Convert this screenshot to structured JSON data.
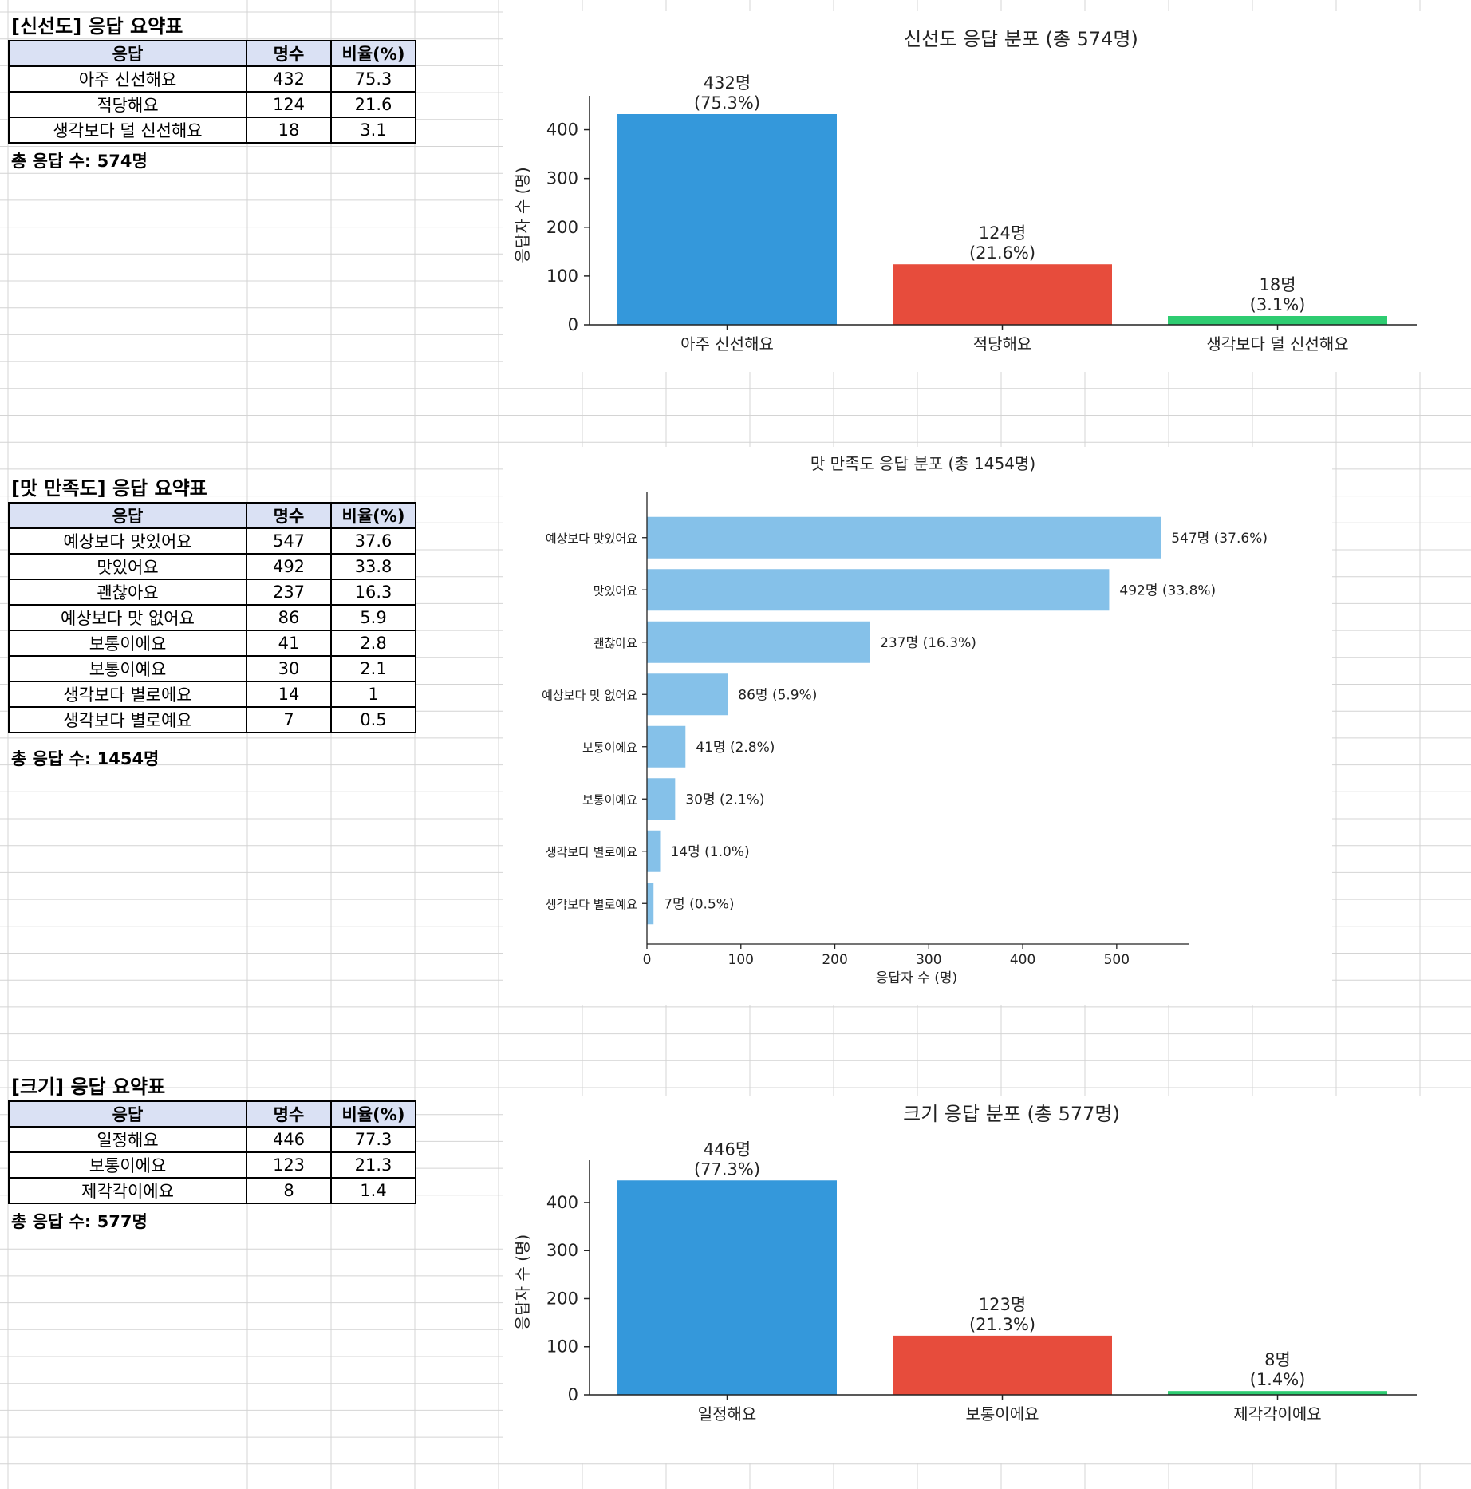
{
  "colors": {
    "header_fill": "#dae1f4",
    "bar_primary": "#3498db",
    "bar_secondary": "#e74c3c",
    "bar_tertiary": "#2ecc71",
    "bar_horizontal": "#85c1e9",
    "gridline": "#d4d4d4"
  },
  "tables": [
    {
      "title": "[신선도] 응답 요약표",
      "headers": [
        "응답",
        "명수",
        "비율(%)"
      ],
      "rows": [
        [
          "아주 신선해요",
          "432",
          "75.3"
        ],
        [
          "적당해요",
          "124",
          "21.6"
        ],
        [
          "생각보다 덜 신선해요",
          "18",
          "3.1"
        ]
      ],
      "total": "총 응답 수: 574명"
    },
    {
      "title": "[맛 만족도] 응답 요약표",
      "headers": [
        "응답",
        "명수",
        "비율(%)"
      ],
      "rows": [
        [
          "예상보다 맛있어요",
          "547",
          "37.6"
        ],
        [
          "맛있어요",
          "492",
          "33.8"
        ],
        [
          "괜찮아요",
          "237",
          "16.3"
        ],
        [
          "예상보다 맛 없어요",
          "86",
          "5.9"
        ],
        [
          "보통이에요",
          "41",
          "2.8"
        ],
        [
          "보통이예요",
          "30",
          "2.1"
        ],
        [
          "생각보다 별로에요",
          "14",
          "1"
        ],
        [
          "생각보다 별로예요",
          "7",
          "0.5"
        ]
      ],
      "total": "총 응답 수: 1454명"
    },
    {
      "title": "[크기] 응답 요약표",
      "headers": [
        "응답",
        "명수",
        "비율(%)"
      ],
      "rows": [
        [
          "일정해요",
          "446",
          "77.3"
        ],
        [
          "보통이에요",
          "123",
          "21.3"
        ],
        [
          "제각각이에요",
          "8",
          "1.4"
        ]
      ],
      "total": "총 응답 수: 577명"
    }
  ],
  "chart_data": [
    {
      "type": "bar",
      "orientation": "vertical",
      "title": "신선도 응답 분포 (총 574명)",
      "ylabel": "응답자 수 (명)",
      "xlabel": "",
      "categories": [
        "아주 신선해요",
        "적당해요",
        "생각보다 덜 신선해요"
      ],
      "values": [
        432,
        124,
        18
      ],
      "data_labels": [
        "432명",
        "124명",
        "18명"
      ],
      "percent_labels": [
        "(75.3%)",
        "(21.6%)",
        "(3.1%)"
      ],
      "colors": [
        "#3498db",
        "#e74c3c",
        "#2ecc71"
      ],
      "ylim": [
        0,
        450
      ],
      "yticks": [
        0,
        100,
        200,
        300,
        400
      ],
      "grid": false
    },
    {
      "type": "bar",
      "orientation": "horizontal",
      "title": "맛 만족도 응답 분포 (총 1454명)",
      "xlabel": "응답자 수 (명)",
      "ylabel": "",
      "categories": [
        "예상보다 맛있어요",
        "맛있어요",
        "괜찮아요",
        "예상보다 맛 없어요",
        "보통이에요",
        "보통이예요",
        "생각보다 별로에요",
        "생각보다 별로예요"
      ],
      "values": [
        547,
        492,
        237,
        86,
        41,
        30,
        14,
        7
      ],
      "data_labels": [
        "547명 (37.6%)",
        "492명 (33.8%)",
        "237명 (16.3%)",
        "86명 (5.9%)",
        "41명 (2.8%)",
        "30명 (2.1%)",
        "14명 (1.0%)",
        "7명 (0.5%)"
      ],
      "colors": [
        "#85c1e9"
      ],
      "xlim": [
        0,
        574
      ],
      "xticks": [
        0,
        100,
        200,
        300,
        400,
        500
      ],
      "grid": false
    },
    {
      "type": "bar",
      "orientation": "vertical",
      "title": "크기 응답 분포 (총 577명)",
      "ylabel": "응답자 수 (명)",
      "xlabel": "",
      "categories": [
        "일정해요",
        "보통이에요",
        "제각각이에요"
      ],
      "values": [
        446,
        123,
        8
      ],
      "data_labels": [
        "446명",
        "123명",
        "8명"
      ],
      "percent_labels": [
        "(77.3%)",
        "(21.3%)",
        "(1.4%)"
      ],
      "colors": [
        "#3498db",
        "#e74c3c",
        "#2ecc71"
      ],
      "ylim": [
        0,
        468
      ],
      "yticks": [
        0,
        100,
        200,
        300,
        400
      ],
      "grid": false
    }
  ]
}
